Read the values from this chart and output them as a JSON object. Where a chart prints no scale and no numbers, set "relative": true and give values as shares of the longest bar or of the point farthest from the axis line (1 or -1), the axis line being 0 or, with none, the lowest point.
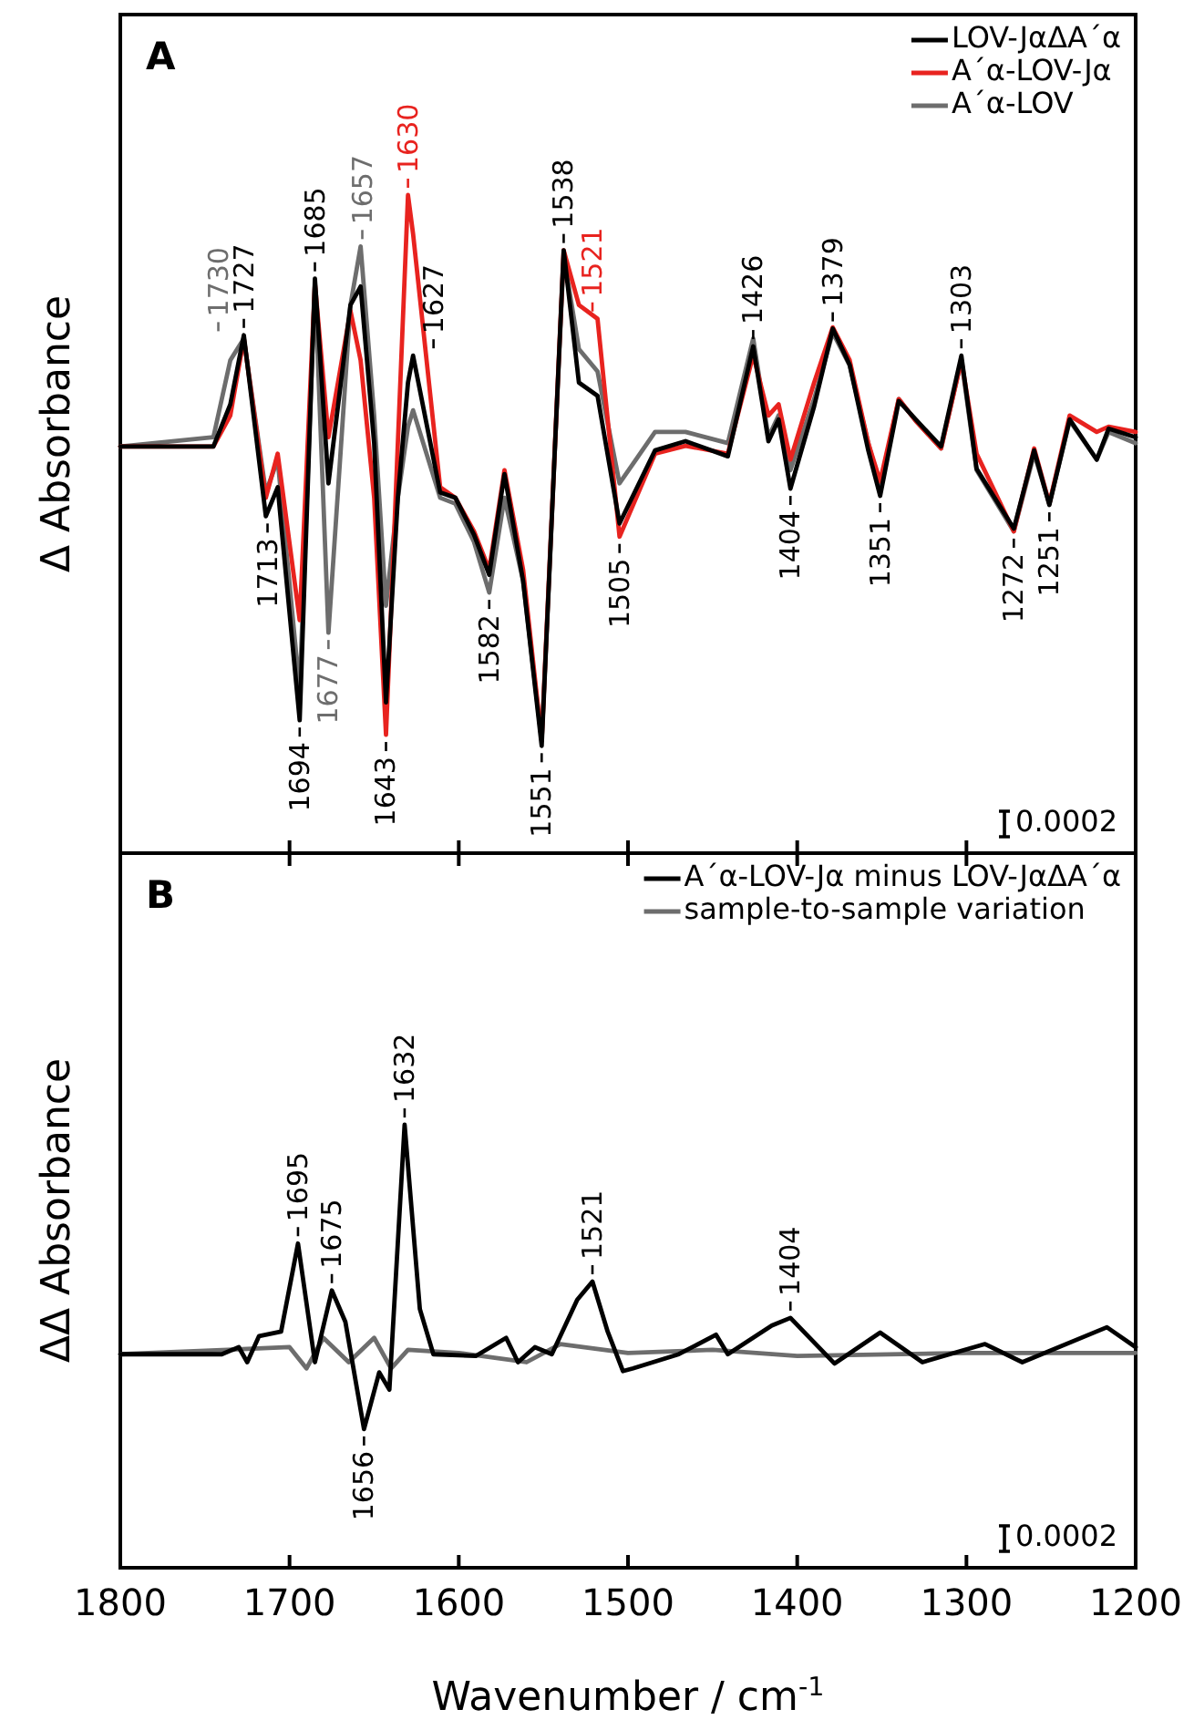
{
  "chart_data": [
    {
      "type": "line",
      "title": "A",
      "ylabel": "Δ Absorbance",
      "relative": true,
      "legend": "top right",
      "tick_labels": false,
      "xlim": [
        1800,
        1200
      ],
      "xticks": [
        1800,
        1700,
        1600,
        1500,
        1400,
        1300,
        1200
      ],
      "x": [
        1800,
        1745,
        1735,
        1727,
        1714,
        1707,
        1694,
        1685,
        1677,
        1664,
        1658,
        1650,
        1643,
        1636,
        1630,
        1627,
        1611,
        1602,
        1591,
        1582,
        1573,
        1562,
        1551,
        1538,
        1529,
        1518,
        1505,
        1484,
        1466,
        1441,
        1426,
        1417,
        1411,
        1404,
        1390,
        1379,
        1369,
        1358,
        1351,
        1340,
        1330,
        1315,
        1303,
        1294,
        1272,
        1260,
        1251,
        1239,
        1223,
        1216,
        1200
      ],
      "series": [
        {
          "name": "LOV-JαΔA´α",
          "color": "#000000",
          "values": [
            0.618,
            0.618,
            0.682,
            0.787,
            0.512,
            0.556,
            0.202,
            0.873,
            0.562,
            0.833,
            0.861,
            0.623,
            0.229,
            0.54,
            0.715,
            0.756,
            0.548,
            0.54,
            0.484,
            0.423,
            0.576,
            0.414,
            0.163,
            0.916,
            0.715,
            0.695,
            0.501,
            0.612,
            0.626,
            0.603,
            0.77,
            0.626,
            0.659,
            0.554,
            0.679,
            0.797,
            0.742,
            0.612,
            0.543,
            0.687,
            0.659,
            0.618,
            0.756,
            0.584,
            0.493,
            0.612,
            0.529,
            0.659,
            0.598,
            0.645,
            0.632
          ]
        },
        {
          "name": "A´α-LOV-Jα",
          "color": "#e8231f",
          "values": [
            0.618,
            0.618,
            0.665,
            0.782,
            0.54,
            0.607,
            0.354,
            0.866,
            0.632,
            0.824,
            0.749,
            0.54,
            0.18,
            0.623,
            1,
            0.941,
            0.556,
            0.54,
            0.489,
            0.431,
            0.582,
            0.431,
            0.171,
            0.916,
            0.833,
            0.812,
            0.481,
            0.607,
            0.619,
            0.607,
            0.757,
            0.665,
            0.682,
            0.598,
            0.715,
            0.799,
            0.749,
            0.623,
            0.565,
            0.69,
            0.657,
            0.615,
            0.749,
            0.607,
            0.489,
            0.615,
            0.531,
            0.665,
            0.64,
            0.648,
            0.64
          ]
        },
        {
          "name": "A´α-LOV",
          "color": "#6d6d6d",
          "values": [
            0.618,
            0.632,
            0.749,
            0.782,
            0.548,
            0.598,
            0.247,
            0.866,
            0.335,
            0.833,
            0.922,
            0.665,
            0.376,
            0.54,
            0.648,
            0.673,
            0.54,
            0.531,
            0.473,
            0.396,
            0.54,
            0.414,
            0.171,
            0.908,
            0.766,
            0.732,
            0.562,
            0.64,
            0.64,
            0.623,
            0.782,
            0.632,
            0.665,
            0.582,
            0.69,
            0.791,
            0.741,
            0.623,
            0.556,
            0.69,
            0.657,
            0.615,
            0.749,
            0.582,
            0.489,
            0.607,
            0.531,
            0.657,
            0.598,
            0.64,
            0.623
          ]
        }
      ],
      "annotations": [
        {
          "text": "1727",
          "x": 1727,
          "y": 0.787
        },
        {
          "text": "1730",
          "x": 1730,
          "y": 0.782
        },
        {
          "text": "1685",
          "x": 1685,
          "y": 0.873
        },
        {
          "text": "1657",
          "x": 1657,
          "y": 0.922
        },
        {
          "text": "1630",
          "x": 1630,
          "y": 1
        },
        {
          "text": "1627",
          "x": 1627,
          "y": 0.756
        },
        {
          "text": "1538",
          "x": 1538,
          "y": 0.916
        },
        {
          "text": "1521",
          "x": 1521,
          "y": 0.812
        },
        {
          "text": "1426",
          "x": 1426,
          "y": 0.77
        },
        {
          "text": "1379",
          "x": 1379,
          "y": 0.797
        },
        {
          "text": "1303",
          "x": 1303,
          "y": 0.756
        },
        {
          "text": "1713",
          "x": 1713,
          "y": 0.512
        },
        {
          "text": "1694",
          "x": 1694,
          "y": 0.202
        },
        {
          "text": "1677",
          "x": 1677,
          "y": 0.335
        },
        {
          "text": "1643",
          "x": 1643,
          "y": 0.229
        },
        {
          "text": "1582",
          "x": 1582,
          "y": 0.423
        },
        {
          "text": "1551",
          "x": 1551,
          "y": 0.163
        },
        {
          "text": "1505",
          "x": 1505,
          "y": 0.501
        },
        {
          "text": "1404",
          "x": 1404,
          "y": 0.554
        },
        {
          "text": "1351",
          "x": 1351,
          "y": 0.543
        },
        {
          "text": "1272",
          "x": 1272,
          "y": 0.493
        },
        {
          "text": "1251",
          "x": 1251,
          "y": 0.529
        },
        "0.0002"
      ]
    },
    {
      "type": "line",
      "title": "B",
      "ylabel": "ΔΔ Absorbance",
      "xlabel": "Wavenumber / cm$^{-1}$",
      "relative": true,
      "legend": "top right",
      "tick_labels": "x",
      "xlim": [
        1800,
        1200
      ],
      "xticks": [
        1800,
        1700,
        1600,
        1500,
        1400,
        1300,
        1200
      ],
      "series": [
        {
          "name": "A´α-LOV-Jα minus LOV-JαΔA´α",
          "color": "#000000",
          "x": [
            1800,
            1740,
            1730,
            1725,
            1718,
            1705,
            1695,
            1685,
            1675,
            1667,
            1656,
            1647,
            1641,
            1632,
            1623,
            1615,
            1590,
            1572,
            1565,
            1555,
            1545,
            1530,
            1521,
            1512,
            1503,
            1497,
            1470,
            1448,
            1441,
            1415,
            1404,
            1378,
            1351,
            1326,
            1289,
            1267,
            1217,
            1200
          ],
          "values": [
            0.482,
            0.482,
            0.498,
            0.464,
            0.523,
            0.533,
            0.732,
            0.464,
            0.626,
            0.555,
            0.313,
            0.441,
            0.402,
            1,
            0.584,
            0.482,
            0.478,
            0.519,
            0.464,
            0.498,
            0.482,
            0.605,
            0.646,
            0.533,
            0.444,
            0.45,
            0.482,
            0.526,
            0.482,
            0.547,
            0.564,
            0.461,
            0.531,
            0.464,
            0.505,
            0.464,
            0.543,
            0.498
          ]
        },
        {
          "name": "sample-to-sample variation",
          "color": "#6d6d6d",
          "x": [
            1800,
            1700,
            1690,
            1680,
            1665,
            1650,
            1640,
            1630,
            1600,
            1560,
            1540,
            1500,
            1450,
            1400,
            1300,
            1200
          ],
          "values": [
            0.482,
            0.498,
            0.45,
            0.519,
            0.464,
            0.519,
            0.45,
            0.492,
            0.485,
            0.464,
            0.505,
            0.485,
            0.492,
            0.478,
            0.485,
            0.485
          ]
        }
      ],
      "annotations": [
        {
          "text": "1695",
          "x": 1695,
          "y": 0.732
        },
        {
          "text": "1675",
          "x": 1675,
          "y": 0.626
        },
        {
          "text": "1632",
          "x": 1632,
          "y": 1
        },
        {
          "text": "1521",
          "x": 1521,
          "y": 0.646
        },
        {
          "text": "1404",
          "x": 1404,
          "y": 0.564
        },
        {
          "text": "1656",
          "x": 1656,
          "y": 0.313
        },
        "0.0002"
      ]
    }
  ]
}
